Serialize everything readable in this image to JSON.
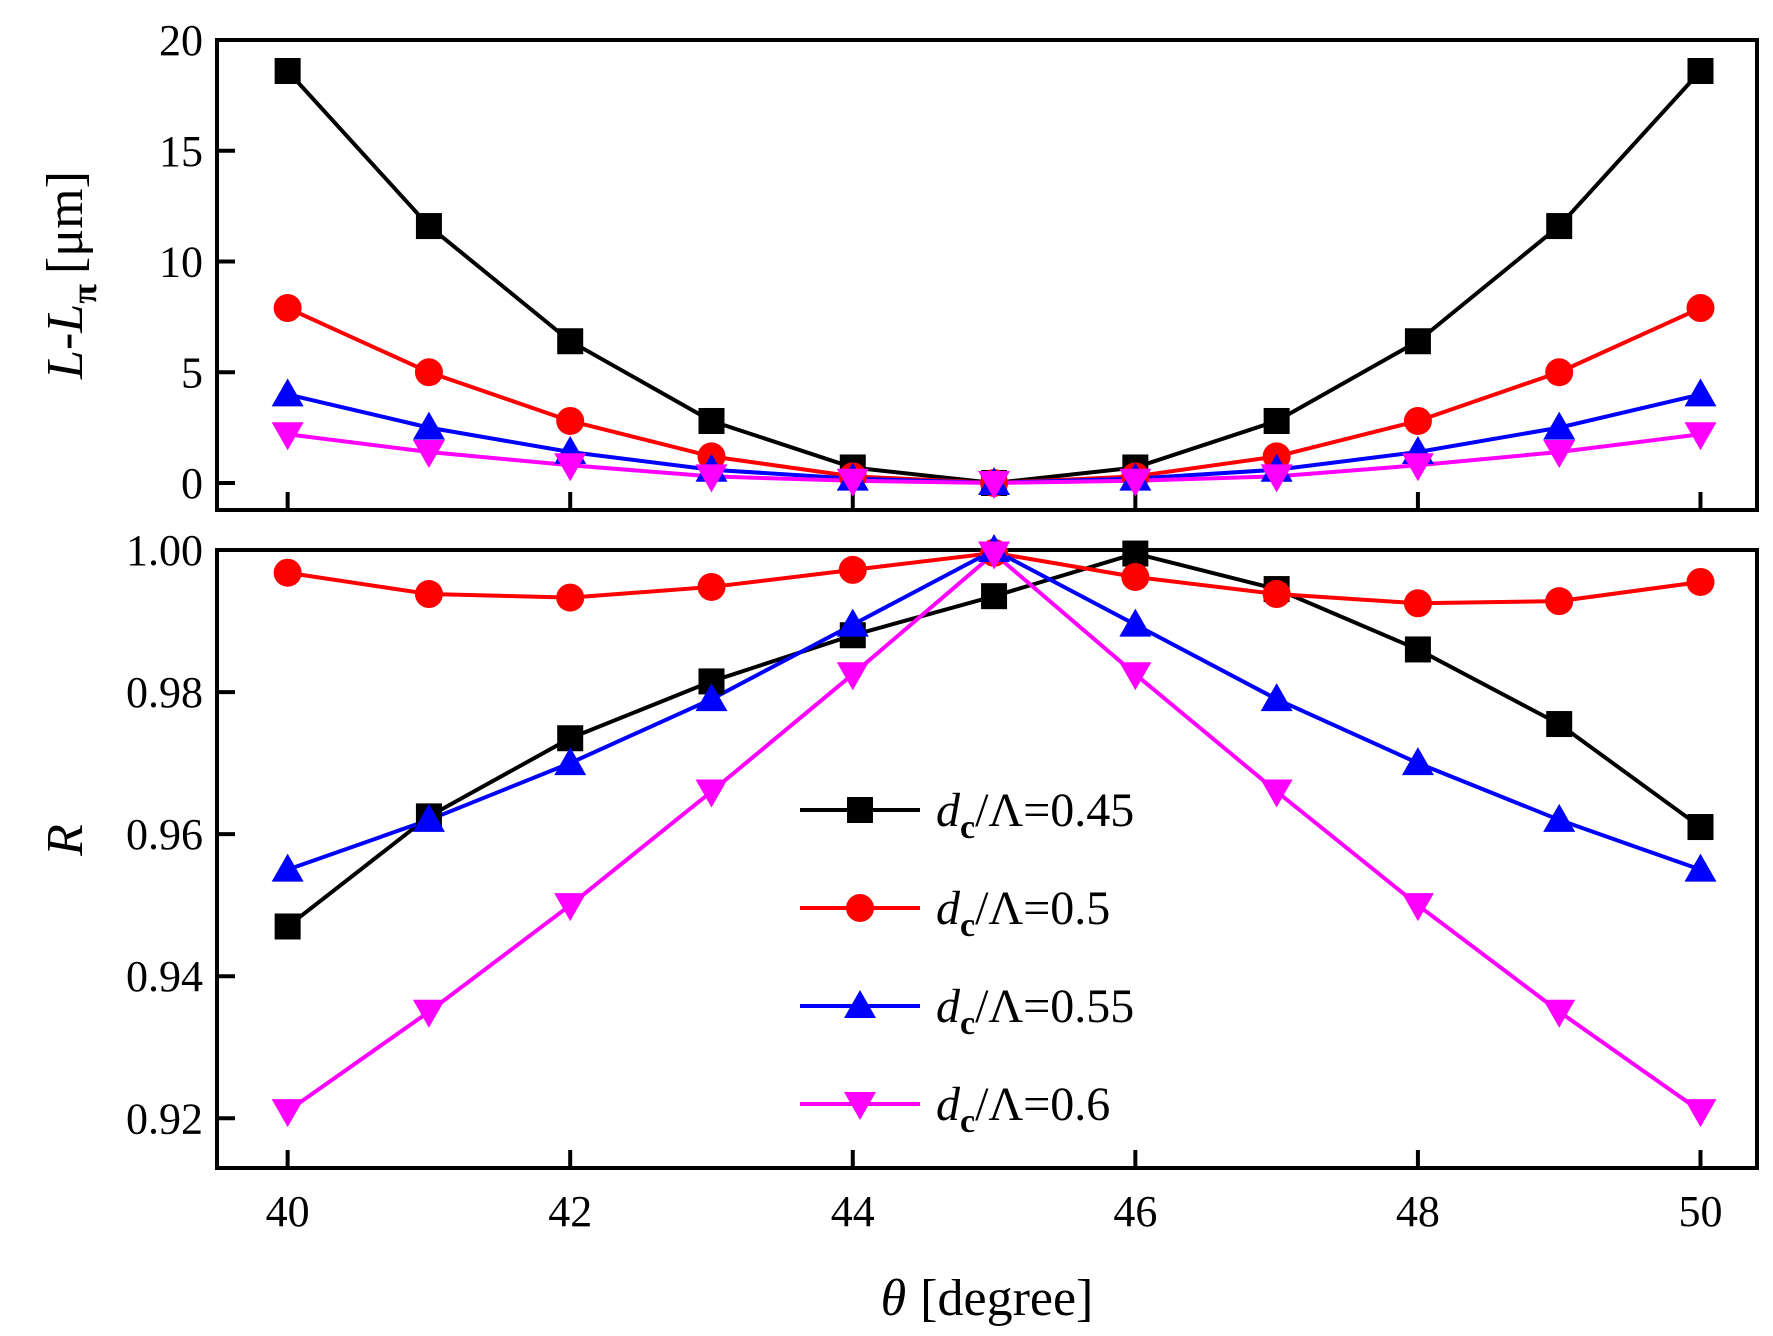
{
  "chart_data": [
    {
      "type": "line",
      "panel": "top",
      "ylabel_parts": {
        "main": "L",
        "dash": "-",
        "main2": "L",
        "sub": "π",
        "unit": "[μm]"
      },
      "ylim": [
        0,
        20
      ],
      "yticks": [
        0,
        5,
        10,
        15,
        20
      ],
      "ytick_labels": [
        "0",
        "5",
        "10",
        "15",
        "20"
      ],
      "x": [
        40,
        41,
        42,
        43,
        44,
        45,
        46,
        47,
        48,
        49,
        50
      ],
      "series": [
        {
          "name": "dc/Λ=0.45",
          "color": "#000000",
          "marker": "square",
          "values": [
            18.6,
            11.6,
            6.4,
            2.8,
            0.7,
            0.0,
            0.7,
            2.8,
            6.4,
            11.6,
            18.6
          ]
        },
        {
          "name": "dc/Λ=0.5",
          "color": "#ff0000",
          "marker": "circle",
          "values": [
            7.9,
            5.0,
            2.8,
            1.2,
            0.3,
            0.0,
            0.3,
            1.2,
            2.8,
            5.0,
            7.9
          ]
        },
        {
          "name": "dc/Λ=0.55",
          "color": "#0000ff",
          "marker": "triangle-up",
          "values": [
            4.0,
            2.5,
            1.4,
            0.6,
            0.2,
            0.0,
            0.2,
            0.6,
            1.4,
            2.5,
            4.0
          ]
        },
        {
          "name": "dc/Λ=0.6",
          "color": "#ff00ff",
          "marker": "triangle-down",
          "values": [
            2.2,
            1.4,
            0.8,
            0.3,
            0.1,
            0.0,
            0.1,
            0.3,
            0.8,
            1.4,
            2.2
          ]
        }
      ]
    },
    {
      "type": "line",
      "panel": "bottom",
      "ylabel": "R",
      "ylim": [
        0.913,
        1.0
      ],
      "yticks": [
        0.92,
        0.94,
        0.96,
        0.98,
        1.0
      ],
      "ytick_labels": [
        "0.92",
        "0.94",
        "0.96",
        "0.98",
        "1.00"
      ],
      "x": [
        40,
        41,
        42,
        43,
        44,
        45,
        46,
        47,
        48,
        49,
        50
      ],
      "xlim": [
        39.5,
        50.4
      ],
      "xticks": [
        40,
        42,
        44,
        46,
        48,
        50
      ],
      "xtick_labels": [
        "40",
        "42",
        "44",
        "46",
        "48",
        "50"
      ],
      "xlabel_parts": {
        "symbol": "θ",
        "unit": "[degree]"
      },
      "series": [
        {
          "name": "dc/Λ=0.45",
          "color": "#000000",
          "marker": "square",
          "values": [
            0.947,
            0.9625,
            0.9735,
            0.9815,
            0.988,
            0.9935,
            0.9995,
            0.9945,
            0.986,
            0.9755,
            0.961
          ]
        },
        {
          "name": "dc/Λ=0.5",
          "color": "#ff0000",
          "marker": "circle",
          "values": [
            0.9968,
            0.9938,
            0.9933,
            0.9948,
            0.9972,
            0.9996,
            0.9962,
            0.9938,
            0.9925,
            0.9928,
            0.9955
          ]
        },
        {
          "name": "dc/Λ=0.55",
          "color": "#0000ff",
          "marker": "triangle-up",
          "values": [
            0.955,
            0.962,
            0.97,
            0.979,
            0.9895,
            1.0,
            0.9895,
            0.979,
            0.97,
            0.962,
            0.955
          ]
        },
        {
          "name": "dc/Λ=0.6",
          "color": "#ff00ff",
          "marker": "triangle-down",
          "values": [
            0.921,
            0.935,
            0.95,
            0.966,
            0.9825,
            0.9995,
            0.9825,
            0.966,
            0.95,
            0.935,
            0.921
          ]
        }
      ],
      "legend": {
        "position": "center",
        "entries": [
          {
            "d": "d",
            "c": "c",
            "rest": "/Λ=0.45"
          },
          {
            "d": "d",
            "c": "c",
            "rest": "/Λ=0.5"
          },
          {
            "d": "d",
            "c": "c",
            "rest": "/Λ=0.55"
          },
          {
            "d": "d",
            "c": "c",
            "rest": "/Λ=0.6"
          }
        ]
      }
    }
  ]
}
